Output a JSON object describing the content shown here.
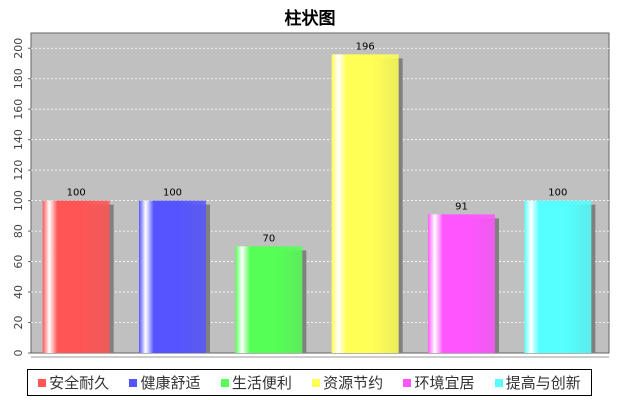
{
  "chart_data": {
    "type": "bar",
    "title": "柱状图",
    "categories": [
      "安全耐久",
      "健康舒适",
      "生活便利",
      "资源节约",
      "环境宜居",
      "提高与创新"
    ],
    "values": [
      100,
      100,
      70,
      196,
      91,
      100
    ],
    "colors": [
      "#ff5555",
      "#5555ff",
      "#55ff55",
      "#ffff55",
      "#ff55ff",
      "#55ffff"
    ],
    "xlabel": "",
    "ylabel": "",
    "ylim": [
      0,
      210
    ],
    "yticks": [
      0,
      20,
      40,
      60,
      80,
      100,
      120,
      140,
      160,
      180,
      200
    ],
    "grid": true,
    "legend": "bottom",
    "plot_background": "#c0c0c0"
  }
}
